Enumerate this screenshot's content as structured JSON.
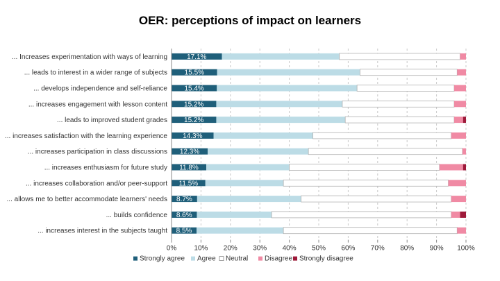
{
  "chart_data": {
    "type": "bar",
    "orientation": "horizontal",
    "stacked": true,
    "title": "OER: perceptions of impact on learners",
    "xlabel": "",
    "ylabel": "",
    "xlim": [
      0,
      100
    ],
    "x_ticks": [
      "0%",
      "10%",
      "20%",
      "30%",
      "40%",
      "50%",
      "60%",
      "70%",
      "80%",
      "90%",
      "100%"
    ],
    "legend_position": "bottom",
    "categories": [
      "... Increases experimentation with ways of learning",
      "... leads to interest in a wider range of subjects",
      "... develops independence and self-reliance",
      "... increases engagement with lesson content",
      "... leads to improved student grades",
      "... increases satisfaction with the learning experience",
      "... increases participation in class discussions",
      "... increases enthusiasm for future study",
      "... increases collaboration and/or peer-support",
      "... allows me to better accommodate learners' needs",
      "... builds confidence",
      "... increases interest in the subjects taught"
    ],
    "series": [
      {
        "name": "Strongly agree",
        "color": "#1f5f7a",
        "values": [
          17.1,
          15.5,
          15.4,
          15.2,
          15.2,
          14.3,
          12.3,
          11.8,
          11.5,
          8.7,
          8.6,
          8.5
        ],
        "labels": [
          "17.1%",
          "15.5%",
          "15.4%",
          "15.2%",
          "15.2%",
          "14.3%",
          "12.3%",
          "11.8%",
          "11.5%",
          "8.7%",
          "8.6%",
          "8.5%"
        ]
      },
      {
        "name": "Agree",
        "color": "#bcdce6",
        "values": [
          39.9,
          48.5,
          47.6,
          42.8,
          43.8,
          33.7,
          34.2,
          28.2,
          26.5,
          35.3,
          25.4,
          29.5
        ]
      },
      {
        "name": "Neutral",
        "color": "#ffffff",
        "values": [
          41.0,
          33.0,
          33.0,
          38.0,
          37.0,
          47.0,
          52.3,
          51.0,
          56.0,
          51.0,
          61.0,
          59.0
        ]
      },
      {
        "name": "Disagree",
        "color": "#f08aa4",
        "values": [
          2.0,
          3.0,
          4.0,
          4.0,
          3.0,
          5.0,
          1.2,
          8.0,
          6.0,
          5.0,
          3.0,
          3.0
        ]
      },
      {
        "name": "Strongly disagree",
        "color": "#9e1a3a",
        "values": [
          0.0,
          0.0,
          0.0,
          0.0,
          1.0,
          0.0,
          0.0,
          1.0,
          0.0,
          0.0,
          2.0,
          0.0
        ]
      }
    ]
  }
}
